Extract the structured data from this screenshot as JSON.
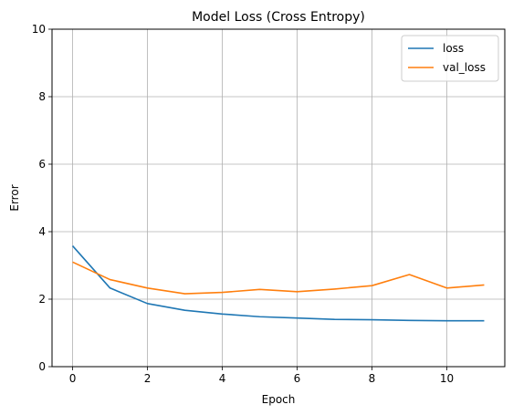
{
  "chart_data": {
    "type": "line",
    "title": "Model Loss (Cross Entropy)",
    "xlabel": "Epoch",
    "ylabel": "Error",
    "xlim": [
      -0.55,
      11.55
    ],
    "ylim": [
      0,
      10
    ],
    "xticks": [
      0,
      2,
      4,
      6,
      8,
      10
    ],
    "yticks": [
      0,
      2,
      4,
      6,
      8,
      10
    ],
    "grid": true,
    "legend_position": "top-right",
    "x": [
      0,
      1,
      2,
      3,
      4,
      5,
      6,
      7,
      8,
      9,
      10,
      11
    ],
    "series": [
      {
        "name": "loss",
        "color": "#1f77b4",
        "values": [
          3.58,
          2.33,
          1.87,
          1.67,
          1.56,
          1.48,
          1.44,
          1.4,
          1.39,
          1.37,
          1.36,
          1.36
        ]
      },
      {
        "name": "val_loss",
        "color": "#ff7f0e",
        "values": [
          3.1,
          2.58,
          2.33,
          2.16,
          2.2,
          2.29,
          2.22,
          2.3,
          2.4,
          2.73,
          2.33,
          2.42
        ]
      }
    ]
  }
}
